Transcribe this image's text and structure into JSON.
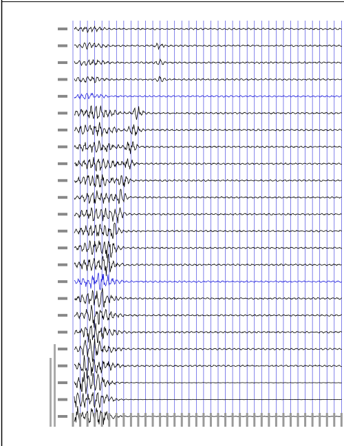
{
  "plot": {
    "grid_color": "#4a4ae0",
    "trace_colors": [
      "#000000",
      "#000000",
      "#000000",
      "#000000",
      "#2222dd",
      "#000000",
      "#000000",
      "#000000",
      "#000000",
      "#000000",
      "#000000",
      "#000000",
      "#000000",
      "#000000",
      "#000000",
      "#2222dd",
      "#000000",
      "#000000",
      "#000000",
      "#000000",
      "#000000",
      "#000000",
      "#000000",
      "#000000"
    ]
  }
}
